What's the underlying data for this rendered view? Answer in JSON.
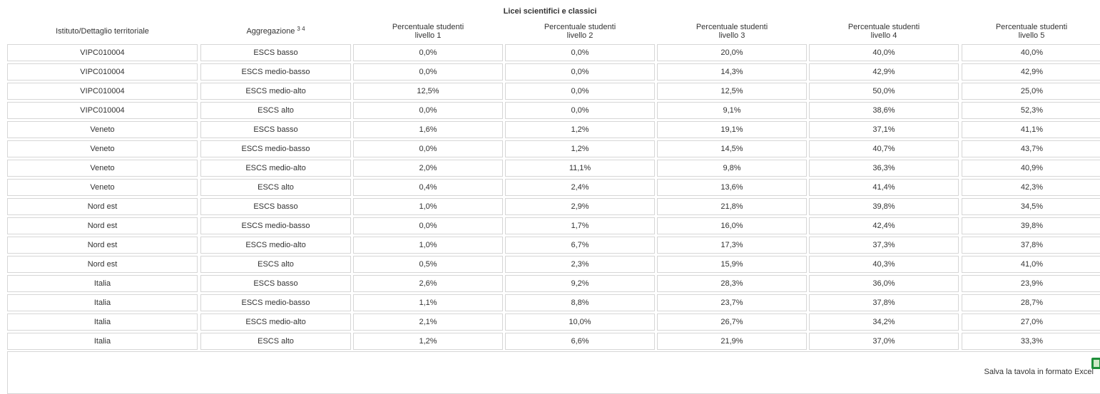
{
  "table": {
    "title": "Licei scientifici e classici",
    "headers": [
      {
        "lines": [
          "Istituto/Dettaglio territoriale"
        ]
      },
      {
        "lines": [
          "Aggregazione"
        ],
        "sup": "3 4"
      },
      {
        "lines": [
          "Percentuale studenti",
          "livello 1"
        ]
      },
      {
        "lines": [
          "Percentuale studenti",
          "livello 2"
        ]
      },
      {
        "lines": [
          "Percentuale studenti",
          "livello 3"
        ]
      },
      {
        "lines": [
          "Percentuale studenti",
          "livello 4"
        ]
      },
      {
        "lines": [
          "Percentuale studenti",
          "livello 5"
        ]
      }
    ],
    "rows": [
      [
        "VIPC010004",
        "ESCS basso",
        "0,0%",
        "0,0%",
        "20,0%",
        "40,0%",
        "40,0%"
      ],
      [
        "VIPC010004",
        "ESCS medio-basso",
        "0,0%",
        "0,0%",
        "14,3%",
        "42,9%",
        "42,9%"
      ],
      [
        "VIPC010004",
        "ESCS medio-alto",
        "12,5%",
        "0,0%",
        "12,5%",
        "50,0%",
        "25,0%"
      ],
      [
        "VIPC010004",
        "ESCS alto",
        "0,0%",
        "0,0%",
        "9,1%",
        "38,6%",
        "52,3%"
      ],
      [
        "Veneto",
        "ESCS basso",
        "1,6%",
        "1,2%",
        "19,1%",
        "37,1%",
        "41,1%"
      ],
      [
        "Veneto",
        "ESCS medio-basso",
        "0,0%",
        "1,2%",
        "14,5%",
        "40,7%",
        "43,7%"
      ],
      [
        "Veneto",
        "ESCS medio-alto",
        "2,0%",
        "11,1%",
        "9,8%",
        "36,3%",
        "40,9%"
      ],
      [
        "Veneto",
        "ESCS alto",
        "0,4%",
        "2,4%",
        "13,6%",
        "41,4%",
        "42,3%"
      ],
      [
        "Nord est",
        "ESCS basso",
        "1,0%",
        "2,9%",
        "21,8%",
        "39,8%",
        "34,5%"
      ],
      [
        "Nord est",
        "ESCS medio-basso",
        "0,0%",
        "1,7%",
        "16,0%",
        "42,4%",
        "39,8%"
      ],
      [
        "Nord est",
        "ESCS medio-alto",
        "1,0%",
        "6,7%",
        "17,3%",
        "37,3%",
        "37,8%"
      ],
      [
        "Nord est",
        "ESCS alto",
        "0,5%",
        "2,3%",
        "15,9%",
        "40,3%",
        "41,0%"
      ],
      [
        "Italia",
        "ESCS basso",
        "2,6%",
        "9,2%",
        "28,3%",
        "36,0%",
        "23,9%"
      ],
      [
        "Italia",
        "ESCS medio-basso",
        "1,1%",
        "8,8%",
        "23,7%",
        "37,8%",
        "28,7%"
      ],
      [
        "Italia",
        "ESCS medio-alto",
        "2,1%",
        "10,0%",
        "26,7%",
        "34,2%",
        "27,0%"
      ],
      [
        "Italia",
        "ESCS alto",
        "1,2%",
        "6,6%",
        "21,9%",
        "37,0%",
        "33,3%"
      ]
    ],
    "footer": "Salva la tavola in formato Excel"
  }
}
